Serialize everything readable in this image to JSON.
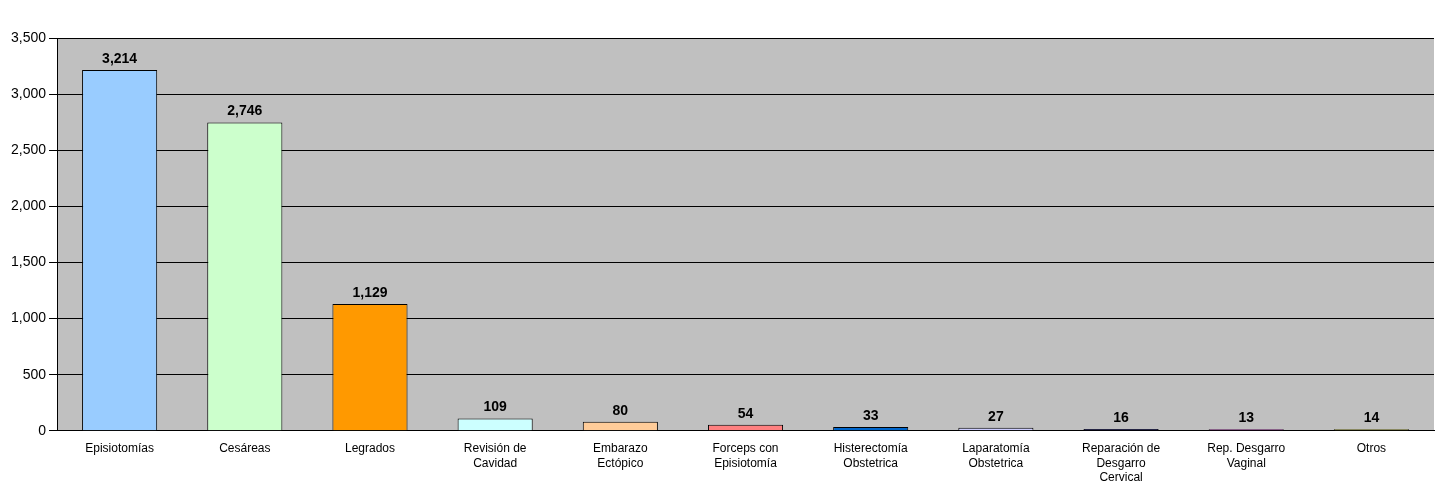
{
  "chart_data": {
    "type": "bar",
    "categories": [
      "Episiotomías",
      "Cesáreas",
      "Legrados",
      "Revisión de Cavidad",
      "Embarazo Ectópico",
      "Forceps con Episiotomía",
      "Histerectomía Obstetrica",
      "Laparatomía Obstetrica",
      "Reparación de Desgarro Cervical",
      "Rep. Desgarro Vaginal",
      "Otros"
    ],
    "values": [
      3214,
      2746,
      1129,
      109,
      80,
      54,
      33,
      27,
      16,
      13,
      14
    ],
    "value_labels": [
      "3,214",
      "2,746",
      "1,129",
      "109",
      "80",
      "54",
      "33",
      "27",
      "16",
      "13",
      "14"
    ],
    "colors": [
      "#99ccff",
      "#ccffcc",
      "#ff9900",
      "#ccffff",
      "#ffcc99",
      "#ff8080",
      "#0066cc",
      "#ccccff",
      "#000080",
      "#cc00cc",
      "#cccc00"
    ],
    "ylim": [
      0,
      3500
    ],
    "yticks": [
      0,
      {
        "value": 500,
        "label": "500"
      },
      {
        "value": 1000,
        "label": "1,000"
      },
      {
        "value": 1500,
        "label": "1,500"
      },
      {
        "value": 2000,
        "label": "2,000"
      },
      {
        "value": 2500,
        "label": "2,500"
      },
      {
        "value": 3000,
        "label": "3,000"
      },
      {
        "value": 3500,
        "label": "3,500"
      }
    ],
    "grid": "y"
  }
}
